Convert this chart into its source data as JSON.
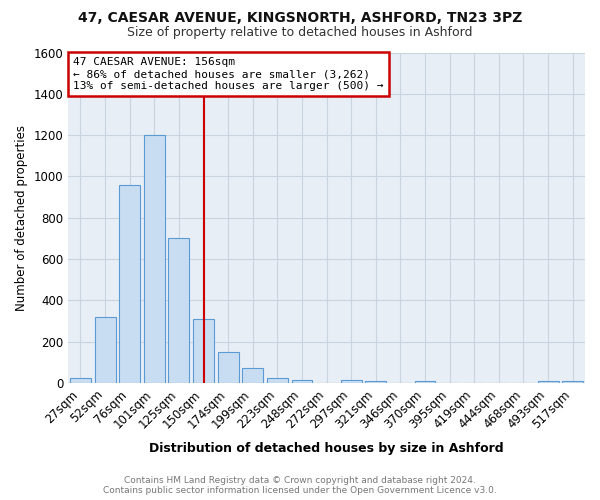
{
  "title": "47, CAESAR AVENUE, KINGSNORTH, ASHFORD, TN23 3PZ",
  "subtitle": "Size of property relative to detached houses in Ashford",
  "xlabel": "Distribution of detached houses by size in Ashford",
  "ylabel": "Number of detached properties",
  "categories": [
    "27sqm",
    "52sqm",
    "76sqm",
    "101sqm",
    "125sqm",
    "150sqm",
    "174sqm",
    "199sqm",
    "223sqm",
    "248sqm",
    "272sqm",
    "297sqm",
    "321sqm",
    "346sqm",
    "370sqm",
    "395sqm",
    "419sqm",
    "444sqm",
    "468sqm",
    "493sqm",
    "517sqm"
  ],
  "values": [
    25,
    320,
    960,
    1200,
    700,
    310,
    150,
    75,
    25,
    15,
    0,
    15,
    10,
    0,
    10,
    0,
    0,
    0,
    0,
    10,
    10
  ],
  "bar_color": "#c9ddf2",
  "bar_edge_color": "#5b9bd5",
  "plot_bg_color": "#e8eef5",
  "fig_bg_color": "#ffffff",
  "grid_color": "#c8d4e0",
  "red_line_x": 5.0,
  "annotation_line1": "47 CAESAR AVENUE: 156sqm",
  "annotation_line2": "← 86% of detached houses are smaller (3,262)",
  "annotation_line3": "13% of semi-detached houses are larger (500) →",
  "annotation_box_color": "#ffffff",
  "annotation_border_color": "#cc0000",
  "footer_text": "Contains HM Land Registry data © Crown copyright and database right 2024.\nContains public sector information licensed under the Open Government Licence v3.0.",
  "ylim_max": 1600,
  "yticks": [
    0,
    200,
    400,
    600,
    800,
    1000,
    1200,
    1400,
    1600
  ]
}
